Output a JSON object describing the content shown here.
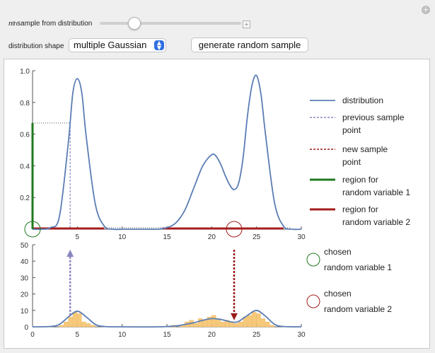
{
  "controls": {
    "slider_label_prefix": "n",
    "slider_label_sup": "th",
    "slider_label_text": " sample from distribution",
    "slider_value_fraction": 0.22,
    "shape_label": "distribution shape",
    "shape_value": "multiple Gaussian",
    "generate_label": "generate random sample"
  },
  "legend": {
    "distribution": "distribution",
    "prev_1": "previous sample",
    "prev_2": "point",
    "new_1": "new sample",
    "new_2": "point",
    "r1_1": "region for",
    "r1_2": "random variable 1",
    "r2_1": "region for",
    "r2_2": "random variable 2",
    "chosen1_1": "chosen",
    "chosen1_2": "random variable 1",
    "chosen2_1": "chosen",
    "chosen2_2": "random variable 2"
  },
  "colors": {
    "distribution": "#5b7db4",
    "previous": "#8a86c0",
    "new": "#9b1b1b",
    "region1": "#1f7a1f",
    "region2": "#a51c1c",
    "histogram": "#f7c97a"
  },
  "chart_data": [
    {
      "type": "line",
      "x_ticks": [
        "5",
        "10",
        "15",
        "20",
        "25",
        "30"
      ],
      "y_ticks": [
        "0.2",
        "0.4",
        "0.6",
        "0.8",
        "1.0"
      ],
      "xlim": [
        0,
        30
      ],
      "ylim": [
        0,
        1
      ],
      "series": [
        {
          "x": [
            0,
            1,
            2,
            3,
            4,
            4.5,
            5,
            5.5,
            6,
            7,
            8,
            9,
            10,
            11,
            12,
            13,
            14,
            15,
            16,
            17,
            18,
            19,
            20,
            20.5,
            21,
            21.5,
            22,
            22.5,
            23,
            23.5,
            24,
            24.5,
            25,
            25.5,
            26,
            27,
            28,
            29,
            30
          ],
          "y": [
            0,
            0,
            0.01,
            0.08,
            0.55,
            0.86,
            0.95,
            0.86,
            0.58,
            0.16,
            0.02,
            0,
            0,
            0,
            0,
            0,
            0,
            0.01,
            0.04,
            0.12,
            0.26,
            0.4,
            0.47,
            0.46,
            0.41,
            0.34,
            0.28,
            0.25,
            0.29,
            0.45,
            0.72,
            0.91,
            0.97,
            0.85,
            0.6,
            0.17,
            0.02,
            0,
            0
          ]
        }
      ],
      "previous_sample": {
        "x": 4.2,
        "y": 0.67
      },
      "region_rv1": {
        "y_from": 0,
        "y_to": 0.67
      },
      "region_rv2": [
        {
          "x_from": 0,
          "x_to": 8
        },
        {
          "x_from": 14.5,
          "x_to": 28
        }
      ],
      "chosen_rv1": {
        "x": 0,
        "y": 0
      },
      "chosen_rv2": {
        "x": 22.5,
        "y": 0
      }
    },
    {
      "type": "bar",
      "x_ticks": [
        "0",
        "5",
        "10",
        "15",
        "20",
        "25",
        "30"
      ],
      "y_ticks": [
        "0",
        "10",
        "20",
        "30",
        "40",
        "50"
      ],
      "xlim": [
        0,
        30
      ],
      "ylim": [
        0,
        50
      ],
      "bars": [
        {
          "x": 3.25,
          "y": 1
        },
        {
          "x": 3.75,
          "y": 3
        },
        {
          "x": 4.25,
          "y": 6
        },
        {
          "x": 4.75,
          "y": 9
        },
        {
          "x": 5.25,
          "y": 8
        },
        {
          "x": 5.75,
          "y": 3
        },
        {
          "x": 6.25,
          "y": 2
        },
        {
          "x": 6.75,
          "y": 1
        },
        {
          "x": 15.75,
          "y": 1
        },
        {
          "x": 16.75,
          "y": 1
        },
        {
          "x": 17.25,
          "y": 3
        },
        {
          "x": 17.75,
          "y": 4
        },
        {
          "x": 18.25,
          "y": 2
        },
        {
          "x": 18.75,
          "y": 5
        },
        {
          "x": 19.25,
          "y": 4
        },
        {
          "x": 19.75,
          "y": 6
        },
        {
          "x": 20.25,
          "y": 7
        },
        {
          "x": 20.75,
          "y": 5
        },
        {
          "x": 21.25,
          "y": 3
        },
        {
          "x": 21.75,
          "y": 4
        },
        {
          "x": 22.25,
          "y": 3
        },
        {
          "x": 22.75,
          "y": 2
        },
        {
          "x": 23.25,
          "y": 3
        },
        {
          "x": 23.75,
          "y": 6
        },
        {
          "x": 24.25,
          "y": 7
        },
        {
          "x": 24.75,
          "y": 9
        },
        {
          "x": 25.25,
          "y": 8
        },
        {
          "x": 25.75,
          "y": 5
        },
        {
          "x": 26.25,
          "y": 3
        },
        {
          "x": 26.75,
          "y": 1
        }
      ],
      "curve": {
        "x": [
          0,
          2,
          3,
          4,
          5,
          6,
          7,
          8,
          10,
          14,
          16,
          18,
          19,
          20,
          21,
          22,
          22.5,
          23,
          24,
          25,
          26,
          27,
          28,
          30
        ],
        "y": [
          0,
          0.2,
          1.5,
          6,
          9.5,
          6,
          1.5,
          0.2,
          0,
          0,
          0.6,
          2.5,
          4,
          5,
          4.5,
          3.2,
          2.8,
          3.3,
          7,
          10,
          6.5,
          1.6,
          0.2,
          0
        ]
      },
      "arrow_previous": {
        "x": 4.2,
        "from_y": 7,
        "to_y": 47
      },
      "arrow_new": {
        "x": 22.5,
        "from_y": 47,
        "to_y": 4
      }
    }
  ]
}
